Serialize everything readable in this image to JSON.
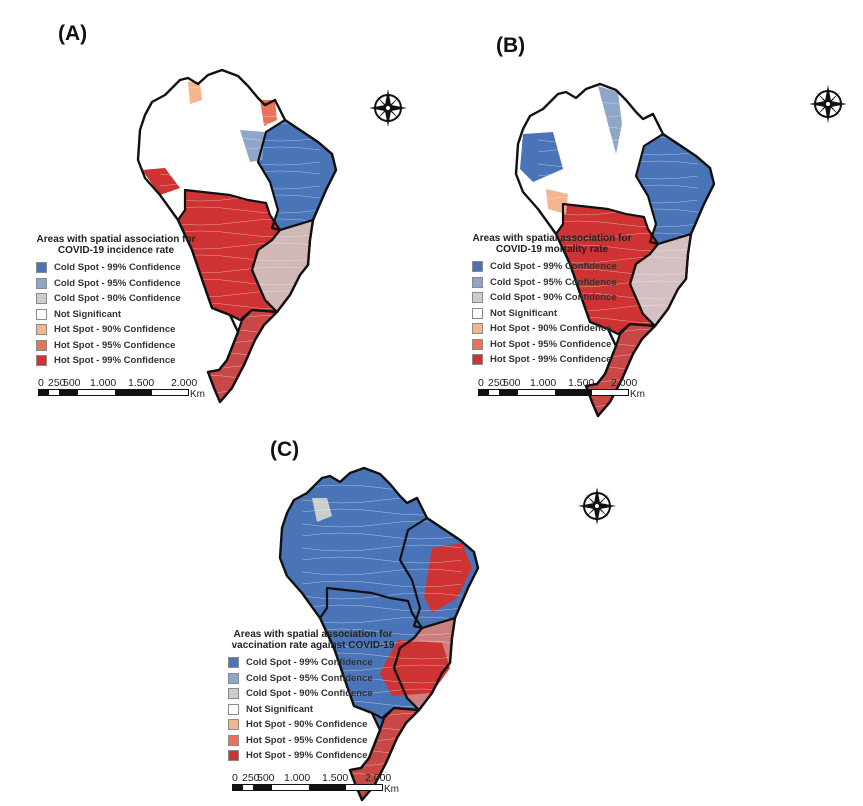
{
  "legend_items": [
    {
      "label": "Cold Spot - 99% Confidence",
      "color": "#4a74b8"
    },
    {
      "label": "Cold Spot - 95% Confidence",
      "color": "#8fa6c9"
    },
    {
      "label": "Cold Spot - 90% Confidence",
      "color": "#c9cfcb"
    },
    {
      "label": "Not Significant",
      "color": "#ffffff"
    },
    {
      "label": "Hot Spot - 90% Confidence",
      "color": "#f2b58d"
    },
    {
      "label": "Hot Spot - 95% Confidence",
      "color": "#e6735a"
    },
    {
      "label": "Hot Spot - 99% Confidence",
      "color": "#cf3232"
    }
  ],
  "scale": {
    "ticks": [
      "0",
      "250",
      "500",
      "1.000",
      "1.500",
      "2.000"
    ],
    "unit": "Km"
  },
  "panels": [
    {
      "label": "(A)",
      "legend_title": "Areas with spatial association for COVID-19 incidence rate"
    },
    {
      "label": "(B)",
      "legend_title": "Areas with spatial association for COVID-19 mortality rate"
    },
    {
      "label": "(C)",
      "legend_title": "Areas with spatial association for vaccination rate against COVID-19"
    }
  ],
  "colors": {
    "region_border": "#111111",
    "municipality_lines": "#ffffff",
    "compass": "#111111"
  }
}
